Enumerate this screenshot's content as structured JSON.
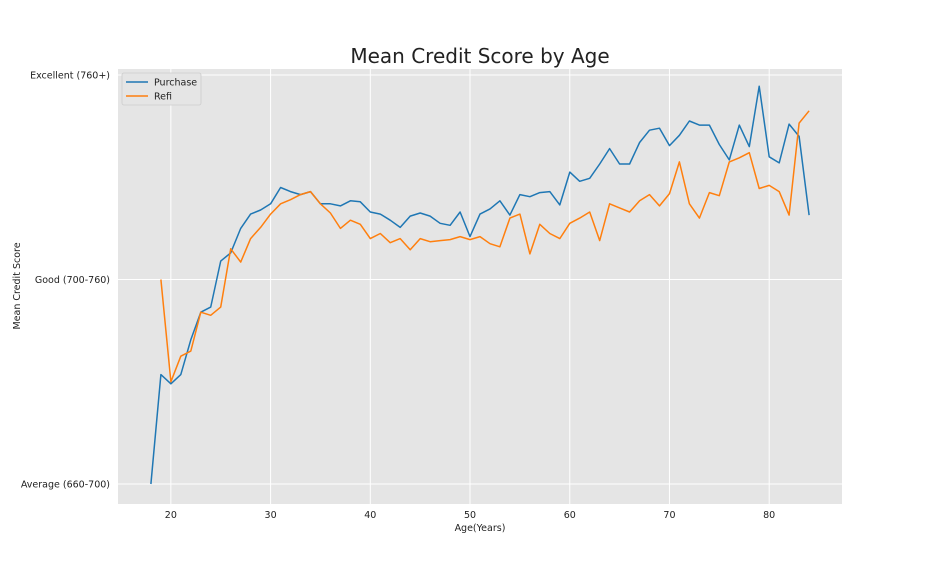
{
  "chart_data": {
    "type": "line",
    "title": "Mean Credit Score by Age",
    "xlabel": "Age(Years)",
    "ylabel": "Mean Credit Score",
    "xlim": [
      14.7,
      87.3
    ],
    "ylim": [
      0,
      2
    ],
    "x_ticks": [
      20,
      30,
      40,
      50,
      60,
      70,
      80
    ],
    "y_ticks": [
      {
        "value": 0,
        "label": "Average (660-700)"
      },
      {
        "value": 1,
        "label": "Good (700-760)"
      },
      {
        "value": 2,
        "label": "Excellent (760+)"
      }
    ],
    "grid": true,
    "legend": "top-left",
    "series": [
      {
        "name": "Purchase",
        "color": "#1f77b4",
        "x": [
          18,
          19,
          20,
          21,
          22,
          23,
          24,
          25,
          26,
          27,
          28,
          29,
          30,
          31,
          32,
          33,
          34,
          35,
          36,
          37,
          38,
          39,
          40,
          41,
          42,
          43,
          44,
          45,
          46,
          47,
          48,
          49,
          50,
          51,
          52,
          53,
          54,
          55,
          56,
          57,
          58,
          59,
          60,
          61,
          62,
          63,
          64,
          65,
          66,
          67,
          68,
          69,
          70,
          71,
          72,
          73,
          74,
          75,
          76,
          77,
          78,
          79,
          80,
          81,
          82,
          83,
          84
        ],
        "y": [
          0.0,
          0.535,
          0.49,
          0.535,
          0.705,
          0.84,
          0.865,
          1.09,
          1.13,
          1.25,
          1.32,
          1.34,
          1.37,
          1.45,
          1.43,
          1.415,
          1.43,
          1.37,
          1.37,
          1.36,
          1.385,
          1.38,
          1.33,
          1.32,
          1.29,
          1.255,
          1.31,
          1.325,
          1.31,
          1.275,
          1.265,
          1.33,
          1.21,
          1.32,
          1.345,
          1.385,
          1.315,
          1.415,
          1.405,
          1.425,
          1.43,
          1.365,
          1.525,
          1.48,
          1.495,
          1.565,
          1.64,
          1.565,
          1.565,
          1.67,
          1.73,
          1.74,
          1.655,
          1.705,
          1.775,
          1.755,
          1.755,
          1.66,
          1.585,
          1.755,
          1.65,
          1.945,
          1.6,
          1.57,
          1.76,
          1.7,
          1.315
        ]
      },
      {
        "name": "Refi",
        "color": "#ff7f0e",
        "x": [
          19,
          20,
          21,
          22,
          23,
          24,
          25,
          26,
          27,
          28,
          29,
          30,
          31,
          32,
          33,
          34,
          35,
          36,
          37,
          38,
          39,
          40,
          41,
          42,
          43,
          44,
          45,
          46,
          47,
          48,
          49,
          50,
          51,
          52,
          53,
          54,
          55,
          56,
          57,
          58,
          59,
          60,
          61,
          62,
          63,
          64,
          65,
          66,
          67,
          68,
          69,
          70,
          71,
          72,
          73,
          74,
          75,
          76,
          77,
          78,
          79,
          80,
          81,
          82,
          83,
          84
        ],
        "y": [
          1.0,
          0.5,
          0.625,
          0.65,
          0.84,
          0.825,
          0.865,
          1.15,
          1.085,
          1.2,
          1.255,
          1.32,
          1.37,
          1.39,
          1.415,
          1.43,
          1.37,
          1.325,
          1.25,
          1.29,
          1.27,
          1.2,
          1.225,
          1.18,
          1.2,
          1.145,
          1.2,
          1.185,
          1.19,
          1.195,
          1.21,
          1.195,
          1.21,
          1.175,
          1.16,
          1.3,
          1.32,
          1.125,
          1.27,
          1.225,
          1.2,
          1.275,
          1.3,
          1.33,
          1.19,
          1.37,
          1.35,
          1.33,
          1.385,
          1.415,
          1.36,
          1.42,
          1.575,
          1.37,
          1.3,
          1.425,
          1.41,
          1.575,
          1.595,
          1.62,
          1.445,
          1.46,
          1.43,
          1.315,
          1.765,
          1.825
        ]
      }
    ]
  }
}
